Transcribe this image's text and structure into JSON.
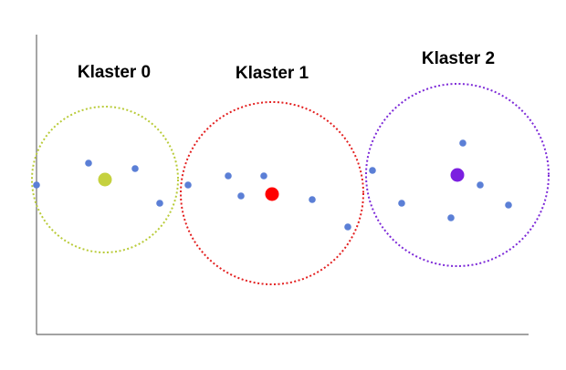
{
  "clusters": [
    {
      "label": "Klaster 0",
      "centroid_color": "#c5d13f",
      "circle_color": "#b9cb39"
    },
    {
      "label": "Klaster 1",
      "centroid_color": "#ff0000",
      "circle_color": "#e32020"
    },
    {
      "label": "Klaster 2",
      "centroid_color": "#7b1fe0",
      "circle_color": "#7d2ad8"
    }
  ],
  "colors": {
    "point": "#5b7fd6",
    "axis": "#6b6b6b",
    "background": "#ffffff"
  }
}
